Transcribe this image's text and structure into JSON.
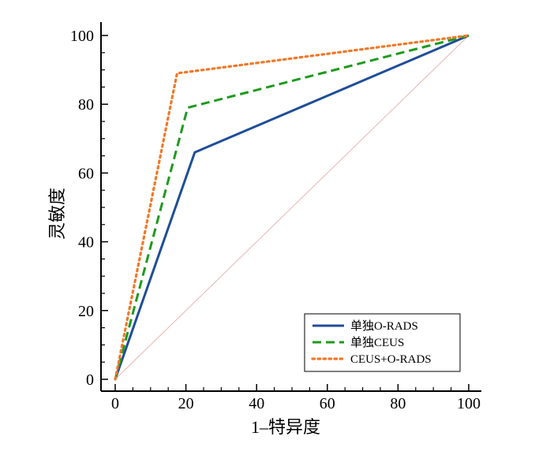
{
  "chart_data": {
    "type": "line",
    "xlabel": "1–特异度",
    "ylabel": "灵敏度",
    "xlim": [
      0,
      100
    ],
    "ylim": [
      0,
      100
    ],
    "xticks": [
      0,
      20,
      40,
      60,
      80,
      100
    ],
    "yticks": [
      0,
      20,
      40,
      60,
      80,
      100
    ],
    "grid": false,
    "legend_position": "bottom-right",
    "reference_line": {
      "x": [
        0,
        100
      ],
      "y": [
        0,
        100
      ],
      "color": "#e8b4b4"
    },
    "series": [
      {
        "name": "单独O-RADS",
        "x": [
          0,
          22.5,
          100
        ],
        "y": [
          0,
          66,
          100
        ],
        "color": "#1f4e96",
        "style": "solid"
      },
      {
        "name": "单独CEUS",
        "x": [
          0,
          20.5,
          100
        ],
        "y": [
          0,
          79,
          100
        ],
        "color": "#1e9a1e",
        "style": "dashed"
      },
      {
        "name": "CEUS+O-RADS",
        "x": [
          0,
          17.5,
          100
        ],
        "y": [
          0,
          89,
          100
        ],
        "color": "#f07828",
        "style": "dotted"
      }
    ]
  }
}
